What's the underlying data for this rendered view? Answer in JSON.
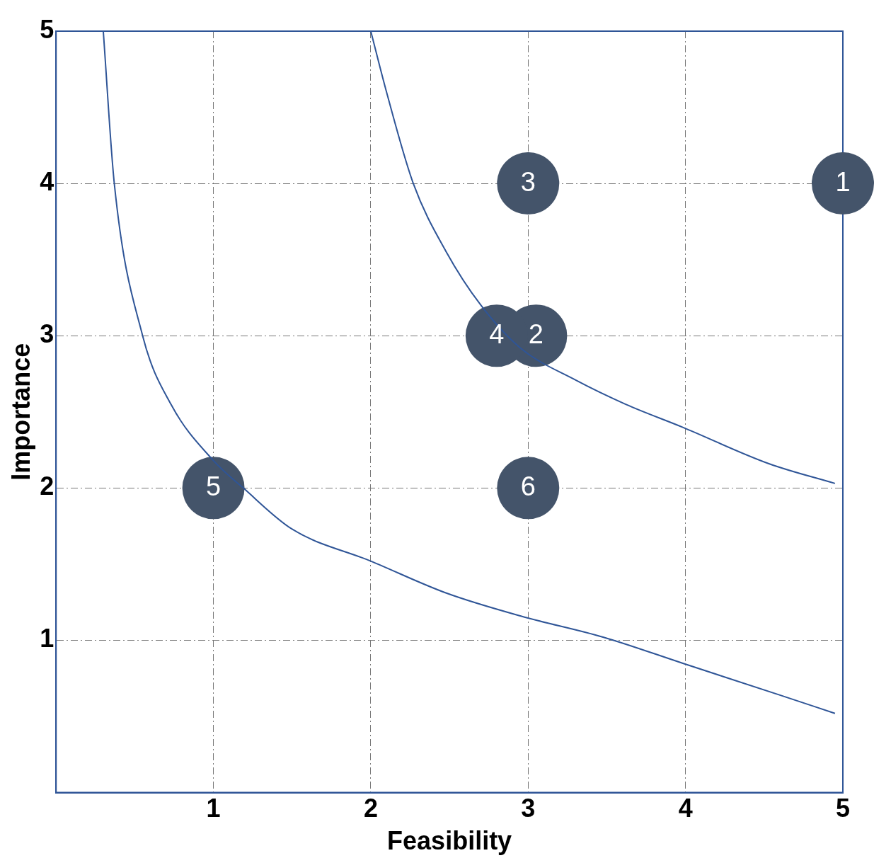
{
  "chart_data": {
    "type": "scatter",
    "xlabel": "Feasibility",
    "ylabel": "Importance",
    "xlim": [
      0,
      5
    ],
    "ylim": [
      0,
      5
    ],
    "xticks": [
      1,
      2,
      3,
      4,
      5
    ],
    "yticks": [
      1,
      2,
      3,
      4,
      5
    ],
    "grid": true,
    "legend": false,
    "series": [
      {
        "marker": "circle",
        "color": "#44546a",
        "x": [
          5,
          3.05,
          3,
          2.8,
          1,
          3
        ],
        "values": [
          4,
          3,
          4,
          3,
          2,
          2
        ]
      },
      {
        "type": "line",
        "color": "#2f5597",
        "x": [
          0.3,
          0.37,
          0.55,
          0.73,
          1.0,
          1.19,
          1.5,
          2.0,
          2.48,
          2.95,
          3.48,
          3.98,
          4.6,
          4.95
        ],
        "values": [
          5,
          4.0,
          3.0,
          2.55,
          2.18,
          2.0,
          1.73,
          1.52,
          1.31,
          1.16,
          1.02,
          0.85,
          0.64,
          0.52
        ]
      },
      {
        "type": "line",
        "color": "#2f5597",
        "x": [
          2.0,
          2.1,
          2.27,
          2.48,
          2.7,
          2.95,
          3.3,
          3.62,
          3.98,
          4.53,
          4.95
        ],
        "values": [
          5,
          4.6,
          4.0,
          3.55,
          3.2,
          2.92,
          2.71,
          2.55,
          2.4,
          2.16,
          2.03
        ]
      }
    ],
    "annotations": [
      {
        "text": "1",
        "x": 5,
        "y": 4
      },
      {
        "text": "2",
        "x": 3.05,
        "y": 3
      },
      {
        "text": "3",
        "x": 3,
        "y": 4
      },
      {
        "text": "4",
        "x": 2.8,
        "y": 3
      },
      {
        "text": "5",
        "x": 1,
        "y": 2
      },
      {
        "text": "6",
        "x": 3,
        "y": 2
      }
    ]
  }
}
